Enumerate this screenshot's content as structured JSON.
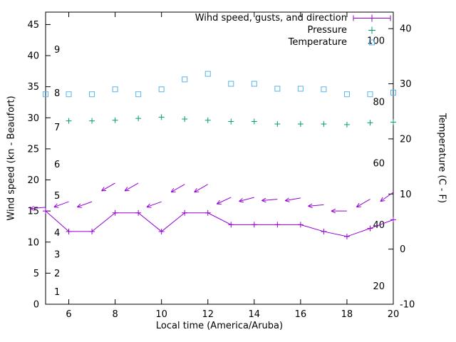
{
  "colors": {
    "wind": "#9400d3",
    "pressure": "#009e73",
    "temperature": "#56b4e9",
    "axis": "#000000"
  },
  "chart_data": {
    "type": "line",
    "title": "",
    "xlabel": "Local time (America/Aruba)",
    "ylabel_left": "Wind speed (kn - Beaufort)",
    "ylabel_right": "Temperature (C - F)",
    "legend": [
      "Wind speed, gusts, and direction",
      "Pressure",
      "Temperature"
    ],
    "legend_position": "top-right-inside",
    "grid": false,
    "x": [
      5,
      6,
      7,
      8,
      9,
      10,
      11,
      12,
      13,
      14,
      15,
      16,
      17,
      18,
      19,
      20
    ],
    "x_ticks": [
      6,
      8,
      10,
      12,
      14,
      16,
      18,
      20
    ],
    "xlim": [
      5,
      20
    ],
    "left_ticks": [
      0,
      5,
      10,
      15,
      20,
      25,
      30,
      35,
      40,
      45
    ],
    "left_lim": [
      0,
      47
    ],
    "right_ticks": [
      -10,
      0,
      10,
      20,
      30,
      40
    ],
    "right_lim": [
      -10,
      43
    ],
    "beaufort_labels": [
      {
        "label": "1",
        "kn": 2
      },
      {
        "label": "2",
        "kn": 5
      },
      {
        "label": "3",
        "kn": 8
      },
      {
        "label": "4",
        "kn": 11.5
      },
      {
        "label": "5",
        "kn": 17.5
      },
      {
        "label": "6",
        "kn": 22.5
      },
      {
        "label": "7",
        "kn": 28.5
      },
      {
        "label": "8",
        "kn": 34
      },
      {
        "label": "9",
        "kn": 41
      }
    ],
    "fahrenheit_labels": [
      {
        "label": "20",
        "c": -6.7
      },
      {
        "label": "40",
        "c": 4.4
      },
      {
        "label": "60",
        "c": 15.6
      },
      {
        "label": "80",
        "c": 26.7
      },
      {
        "label": "100",
        "c": 37.8
      }
    ],
    "series": [
      {
        "key": "wind",
        "name": "Wind speed (kn)",
        "axis": "left",
        "style": "line+plus",
        "color_key": "wind",
        "values": [
          15.0,
          11.7,
          11.7,
          14.7,
          14.7,
          11.7,
          14.7,
          14.7,
          12.8,
          12.8,
          12.8,
          12.8,
          11.7,
          10.9,
          12.2,
          13.6
        ]
      },
      {
        "key": "gusts",
        "name": "Wind gusts and direction (kn)",
        "axis": "left",
        "style": "arrows",
        "color_key": "wind",
        "values": [
          15.6,
          16.5,
          16.5,
          19.5,
          19.5,
          16.5,
          19.3,
          19.3,
          17.2,
          17.2,
          16.9,
          17.1,
          16.0,
          15.0,
          16.9,
          18.0
        ],
        "angles_deg": [
          185,
          200,
          200,
          210,
          210,
          200,
          210,
          210,
          205,
          195,
          185,
          190,
          185,
          180,
          210,
          215
        ]
      },
      {
        "key": "pressure",
        "name": "Pressure (inHg)",
        "axis": "left",
        "style": "plus",
        "color_key": "pressure",
        "values": [
          null,
          29.5,
          29.5,
          29.6,
          29.9,
          30.1,
          29.8,
          29.6,
          29.4,
          29.4,
          29.0,
          29.0,
          29.0,
          28.9,
          29.2,
          29.3
        ]
      },
      {
        "key": "temperature",
        "name": "Temperature (C)",
        "axis": "right",
        "style": "square",
        "color_key": "temperature",
        "values": [
          28.1,
          28.1,
          28.1,
          29.0,
          28.1,
          29.0,
          30.8,
          31.8,
          30.0,
          30.0,
          29.1,
          29.1,
          29.0,
          28.1,
          28.1,
          28.4
        ]
      }
    ]
  }
}
